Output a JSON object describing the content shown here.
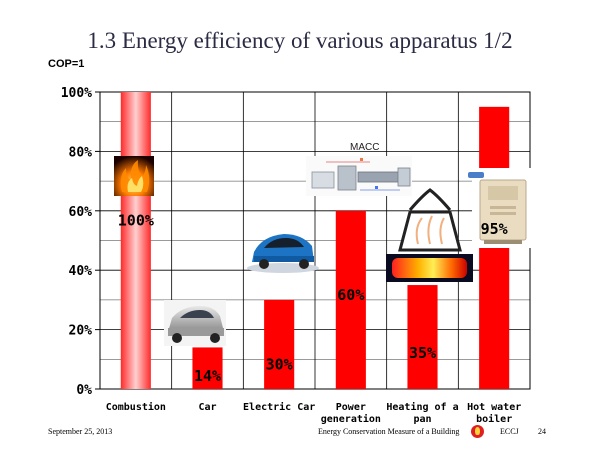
{
  "slide": {
    "title": "1.3 Energy efficiency of various apparatus 1/2",
    "cop_label": "COP=1"
  },
  "footer": {
    "date": "September 25, 2013",
    "center": "Energy Conservation Measure of a Building",
    "org": "ECCJ",
    "page": "24"
  },
  "chart_data": {
    "type": "bar",
    "categories": [
      "Combustion",
      "Car",
      "Electric Car",
      "Power generation",
      "Heating of a pan",
      "Hot water boiler"
    ],
    "category_lines": [
      [
        "Combustion"
      ],
      [
        "Car"
      ],
      [
        "Electric Car"
      ],
      [
        "Power",
        "generation"
      ],
      [
        "Heating of a",
        "pan"
      ],
      [
        "Hot water",
        "boiler"
      ]
    ],
    "values": [
      100,
      14,
      30,
      60,
      35,
      95
    ],
    "data_labels": [
      "100%",
      "14%",
      "30%",
      "60%",
      "35%",
      "95%"
    ],
    "yticks": [
      "0%",
      "20%",
      "40%",
      "60%",
      "80%",
      "100%"
    ],
    "ylim": [
      0,
      100
    ],
    "bar_color": "#ff0000",
    "grid": true,
    "annotations": [
      "MACC"
    ],
    "images": [
      "flame-image",
      "car-image",
      "electric-car-image",
      "power-plant-diagram",
      "pan-heating-image",
      "water-heater-image"
    ]
  }
}
